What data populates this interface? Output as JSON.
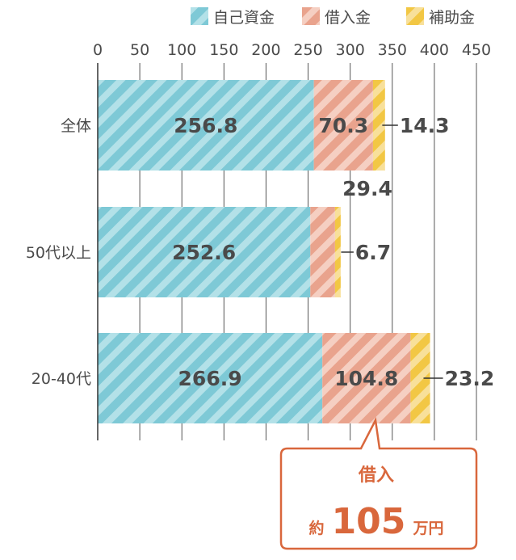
{
  "chart_data": {
    "type": "bar",
    "orientation": "horizontal",
    "stacked": true,
    "categories": [
      "全体",
      "50代以上",
      "20-40代"
    ],
    "series": [
      {
        "name": "自己資金",
        "values": [
          256.8,
          252.6,
          266.9
        ],
        "color": "#7ec9d6",
        "stripe": "#b3e1e8"
      },
      {
        "name": "借入金",
        "values": [
          70.3,
          29.4,
          104.8
        ],
        "color": "#e9a38d",
        "stripe": "#f5cfc2"
      },
      {
        "name": "補助金",
        "values": [
          14.3,
          6.7,
          23.2
        ],
        "color": "#f2c744",
        "stripe": "#f8e09a"
      }
    ],
    "data_labels": [
      [
        "256.8",
        "70.3",
        "14.3"
      ],
      [
        "252.6",
        "29.4",
        "6.7"
      ],
      [
        "266.9",
        "104.8",
        "23.2"
      ]
    ],
    "x_ticks": [
      "0",
      "50",
      "100",
      "150",
      "200",
      "250",
      "300",
      "350",
      "400",
      "450"
    ],
    "xlim": [
      0,
      450
    ],
    "grid": "vertical",
    "legend_position": "top-right"
  },
  "callout": {
    "line1": "借入",
    "prefix": "約",
    "value": "105",
    "unit": "万円",
    "border_color": "#d9673c"
  }
}
